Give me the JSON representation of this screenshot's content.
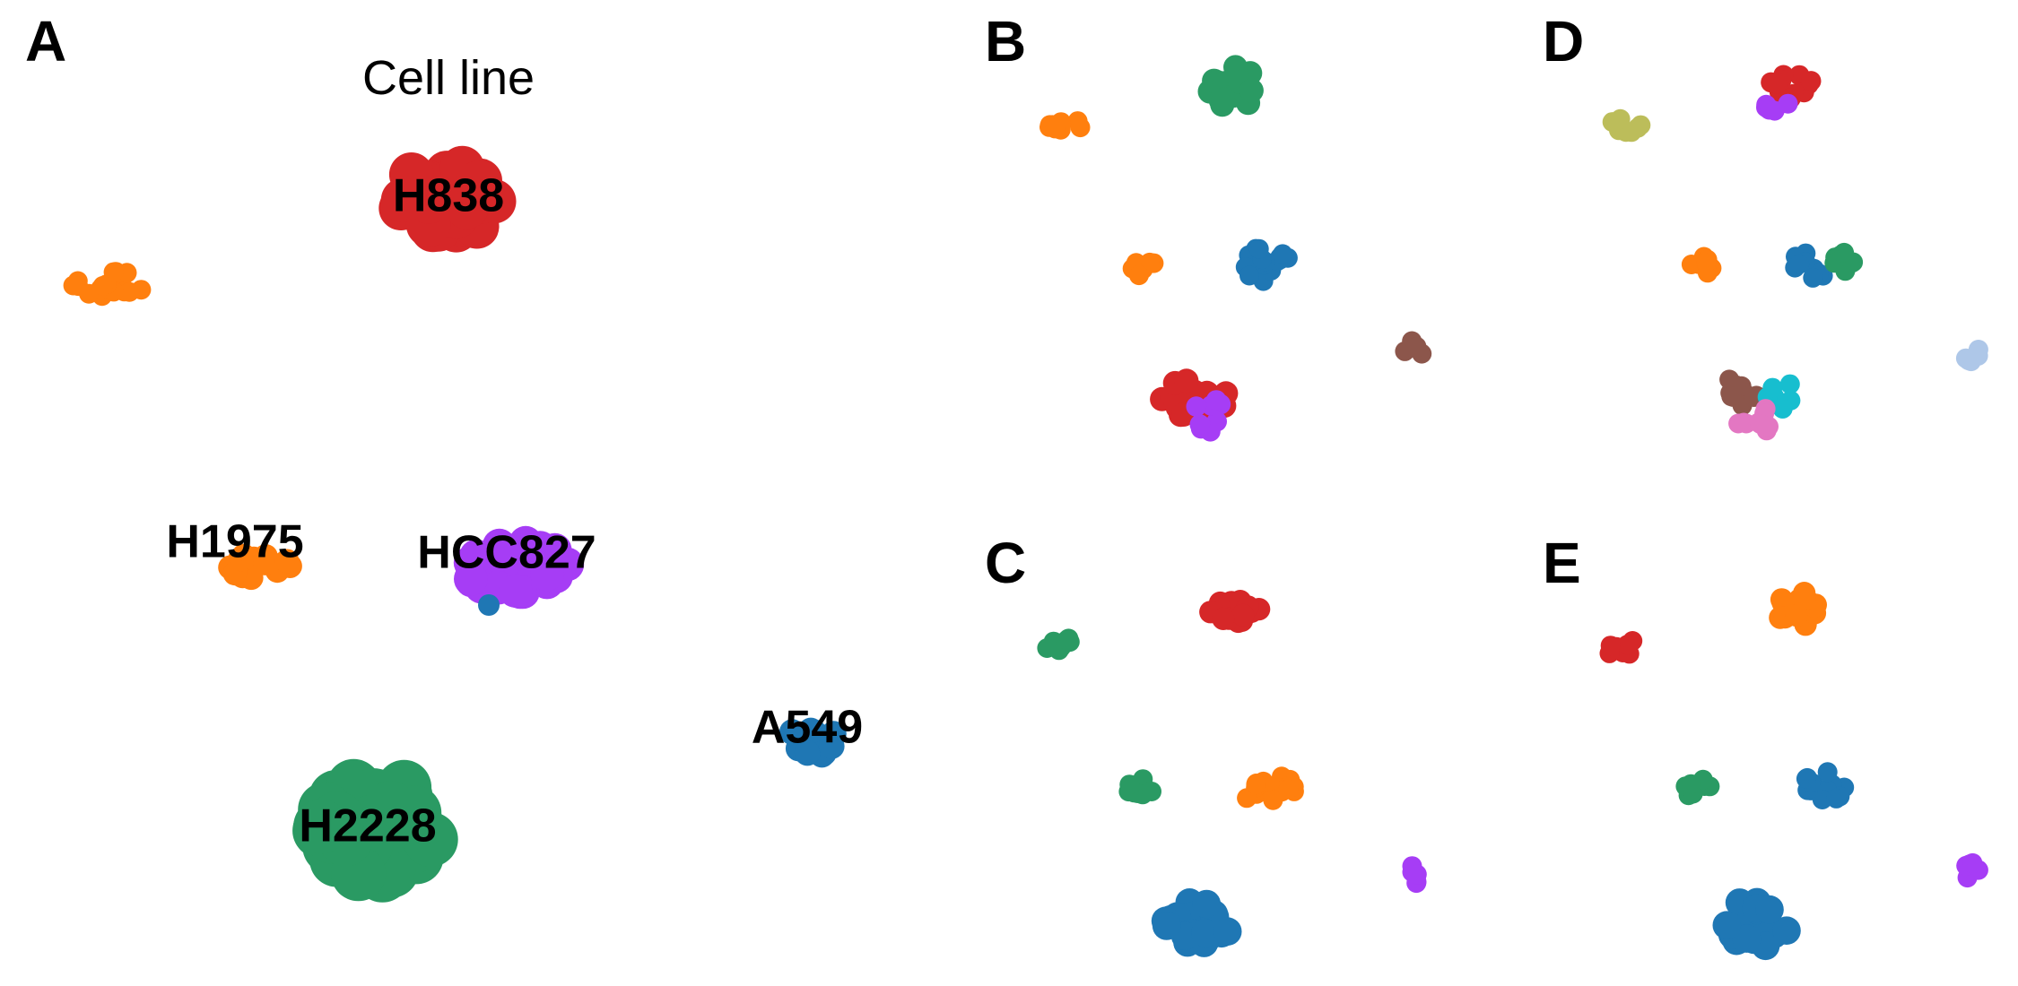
{
  "chart_data": [
    {
      "panel": "A",
      "type": "scatter",
      "title": "Cell line",
      "clusters": [
        {
          "label": "H838",
          "color": "#d62728",
          "center": [
            500,
            222
          ],
          "spread": [
            70,
            55
          ],
          "count": 30,
          "label_pos": [
            500,
            222
          ]
        },
        {
          "label": "",
          "color": "#ff7f0e",
          "center": [
            120,
            315
          ],
          "spread": [
            58,
            20
          ],
          "count": 18,
          "label_pos": null
        },
        {
          "label": "H1975",
          "color": "#ff7f0e",
          "center": [
            290,
            630
          ],
          "spread": [
            45,
            30
          ],
          "count": 16,
          "label_pos": [
            262,
            608
          ]
        },
        {
          "label": "HCC827",
          "color": "#a63df5",
          "center": [
            575,
            630
          ],
          "spread": [
            75,
            42
          ],
          "count": 32,
          "label_pos": [
            565,
            620
          ]
        },
        {
          "label": "",
          "color": "#1f77b4",
          "center": [
            545,
            675
          ],
          "spread": [
            8,
            8
          ],
          "count": 1,
          "label_pos": null
        },
        {
          "label": "A549",
          "color": "#1f77b4",
          "center": [
            905,
            822
          ],
          "spread": [
            32,
            32
          ],
          "count": 10,
          "label_pos": [
            900,
            815
          ]
        },
        {
          "label": "H2228",
          "color": "#2a9a63",
          "center": [
            420,
            925
          ],
          "spread": [
            85,
            68
          ],
          "count": 40,
          "label_pos": [
            410,
            925
          ]
        }
      ]
    },
    {
      "panel": "B",
      "type": "scatter",
      "title": "",
      "clusters": [
        {
          "color": "#2a9a63",
          "center": [
            1375,
            97
          ],
          "spread": [
            38,
            30
          ],
          "count": 16
        },
        {
          "color": "#ff7f0e",
          "center": [
            1185,
            138
          ],
          "spread": [
            28,
            12
          ],
          "count": 8
        },
        {
          "color": "#ff7f0e",
          "center": [
            1270,
            297
          ],
          "spread": [
            22,
            15
          ],
          "count": 7
        },
        {
          "color": "#1f77b4",
          "center": [
            1412,
            295
          ],
          "spread": [
            42,
            24
          ],
          "count": 16
        },
        {
          "color": "#8c564b",
          "center": [
            1575,
            392
          ],
          "spread": [
            16,
            16
          ],
          "count": 5
        },
        {
          "color": "#d62728",
          "center": [
            1330,
            445
          ],
          "spread": [
            50,
            30
          ],
          "count": 18
        },
        {
          "color": "#a63df5",
          "center": [
            1352,
            462
          ],
          "spread": [
            30,
            25
          ],
          "count": 8
        }
      ]
    },
    {
      "panel": "C",
      "type": "scatter",
      "title": "",
      "clusters": [
        {
          "color": "#d62728",
          "center": [
            1375,
            678
          ],
          "spread": [
            38,
            28
          ],
          "count": 14
        },
        {
          "color": "#2a9a63",
          "center": [
            1185,
            720
          ],
          "spread": [
            28,
            12
          ],
          "count": 8
        },
        {
          "color": "#2a9a63",
          "center": [
            1270,
            878
          ],
          "spread": [
            22,
            15
          ],
          "count": 7
        },
        {
          "color": "#ff7f0e",
          "center": [
            1412,
            877
          ],
          "spread": [
            42,
            24
          ],
          "count": 16
        },
        {
          "color": "#a63df5",
          "center": [
            1575,
            975
          ],
          "spread": [
            16,
            16
          ],
          "count": 5
        },
        {
          "color": "#1f77b4",
          "center": [
            1335,
            1030
          ],
          "spread": [
            50,
            35
          ],
          "count": 20
        }
      ]
    },
    {
      "panel": "D",
      "type": "scatter",
      "title": "",
      "clusters": [
        {
          "color": "#d62728",
          "center": [
            2000,
            92
          ],
          "spread": [
            33,
            25
          ],
          "count": 12
        },
        {
          "color": "#a63df5",
          "center": [
            1980,
            112
          ],
          "spread": [
            22,
            15
          ],
          "count": 6
        },
        {
          "color": "#bcbd5a",
          "center": [
            1808,
            140
          ],
          "spread": [
            28,
            12
          ],
          "count": 8
        },
        {
          "color": "#ff7f0e",
          "center": [
            1893,
            297
          ],
          "spread": [
            22,
            15
          ],
          "count": 7
        },
        {
          "color": "#1f77b4",
          "center": [
            2018,
            297
          ],
          "spread": [
            26,
            24
          ],
          "count": 10
        },
        {
          "color": "#2a9a63",
          "center": [
            2055,
            292
          ],
          "spread": [
            20,
            22
          ],
          "count": 8
        },
        {
          "color": "#aec7e8",
          "center": [
            2196,
            392
          ],
          "spread": [
            14,
            16
          ],
          "count": 5
        },
        {
          "color": "#8c564b",
          "center": [
            1935,
            440
          ],
          "spread": [
            30,
            24
          ],
          "count": 10
        },
        {
          "color": "#17becf",
          "center": [
            1985,
            440
          ],
          "spread": [
            20,
            22
          ],
          "count": 7
        },
        {
          "color": "#e377c2",
          "center": [
            1957,
            468
          ],
          "spread": [
            30,
            20
          ],
          "count": 10
        }
      ]
    },
    {
      "panel": "E",
      "type": "scatter",
      "title": "",
      "clusters": [
        {
          "color": "#ff7f0e",
          "center": [
            2000,
            678
          ],
          "spread": [
            38,
            28
          ],
          "count": 14
        },
        {
          "color": "#d62728",
          "center": [
            1808,
            722
          ],
          "spread": [
            28,
            12
          ],
          "count": 8
        },
        {
          "color": "#2a9a63",
          "center": [
            1893,
            878
          ],
          "spread": [
            22,
            15
          ],
          "count": 7
        },
        {
          "color": "#1f77b4",
          "center": [
            2035,
            877
          ],
          "spread": [
            42,
            24
          ],
          "count": 16
        },
        {
          "color": "#a63df5",
          "center": [
            2198,
            975
          ],
          "spread": [
            16,
            16
          ],
          "count": 5
        },
        {
          "color": "#1f77b4",
          "center": [
            1958,
            1030
          ],
          "spread": [
            50,
            35
          ],
          "count": 20
        }
      ]
    }
  ],
  "panel_letters": [
    "A",
    "B",
    "C",
    "D",
    "E"
  ]
}
